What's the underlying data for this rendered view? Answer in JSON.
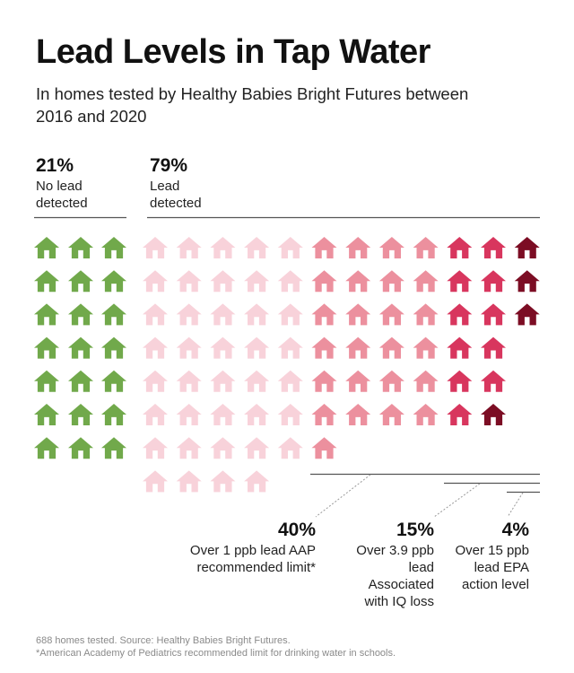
{
  "title": "Lead Levels in Tap Water",
  "subtitle": "In homes tested by Healthy Babies Bright Futures between 2016 and 2020",
  "groups": {
    "no_lead": {
      "pct": "21%",
      "label": "No lead detected"
    },
    "lead": {
      "pct": "79%",
      "label": "Lead detected"
    },
    "over_1": {
      "pct": "40%",
      "label": "Over 1 ppb lead AAP recommended limit*"
    },
    "over_3_9": {
      "pct": "15%",
      "label": "Over 3.9 ppb lead Associated with IQ loss"
    },
    "over_15": {
      "pct": "4%",
      "label": "Over 15 ppb lead EPA action level"
    }
  },
  "footer": {
    "source": "688 homes tested. Source: Healthy Babies Bright Futures.",
    "note": "*American Academy of Pediatrics recommended limit for drinking water in schools."
  },
  "colors": {
    "no_lead": "#71a94b",
    "lead_under_1": "#f8d2da",
    "over_1": "#ec909e",
    "over_3_9": "#d8365e",
    "over_15": "#7c0d24"
  },
  "chart_data": {
    "type": "waffle",
    "total_homes": 688,
    "icon": "house",
    "categories": [
      {
        "name": "No lead detected",
        "percent": 21,
        "icons": 21
      },
      {
        "name": "Lead detected, 1 ppb or under",
        "percent": 39,
        "icons": 39
      },
      {
        "name": "Over 1 ppb lead",
        "percent": 25,
        "icons": 25
      },
      {
        "name": "Over 3.9 ppb lead",
        "percent": 11,
        "icons": 11
      },
      {
        "name": "Over 15 ppb lead",
        "percent": 4,
        "icons": 4
      }
    ],
    "summary_percentages": {
      "no_lead": 21,
      "lead": 79,
      "over_1": 40,
      "over_3_9": 15,
      "over_15": 4
    }
  }
}
